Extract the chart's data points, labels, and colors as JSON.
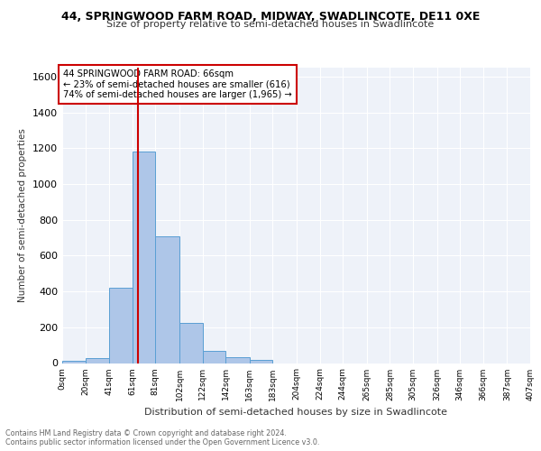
{
  "title1": "44, SPRINGWOOD FARM ROAD, MIDWAY, SWADLINCOTE, DE11 0XE",
  "title2": "Size of property relative to semi-detached houses in Swadlincote",
  "xlabel": "Distribution of semi-detached houses by size in Swadlincote",
  "ylabel": "Number of semi-detached properties",
  "footnote1": "Contains HM Land Registry data © Crown copyright and database right 2024.",
  "footnote2": "Contains public sector information licensed under the Open Government Licence v3.0.",
  "annotation_line1": "44 SPRINGWOOD FARM ROAD: 66sqm",
  "annotation_line2": "← 23% of semi-detached houses are smaller (616)",
  "annotation_line3": "74% of semi-detached houses are larger (1,965) →",
  "property_size": 66,
  "bar_edges": [
    0,
    20,
    41,
    61,
    81,
    102,
    122,
    142,
    163,
    183,
    204,
    224,
    244,
    265,
    285,
    305,
    326,
    346,
    366,
    387,
    407
  ],
  "bar_heights": [
    15,
    30,
    420,
    1180,
    710,
    225,
    70,
    35,
    20,
    0,
    0,
    0,
    0,
    0,
    0,
    0,
    0,
    0,
    0,
    0
  ],
  "bar_color": "#aec6e8",
  "bar_edge_color": "#5a9fd4",
  "vline_color": "#cc0000",
  "vline_x": 66,
  "ylim": [
    0,
    1650
  ],
  "yticks": [
    0,
    200,
    400,
    600,
    800,
    1000,
    1200,
    1400,
    1600
  ],
  "tick_labels": [
    "0sqm",
    "20sqm",
    "41sqm",
    "61sqm",
    "81sqm",
    "102sqm",
    "122sqm",
    "142sqm",
    "163sqm",
    "183sqm",
    "204sqm",
    "224sqm",
    "244sqm",
    "265sqm",
    "285sqm",
    "305sqm",
    "326sqm",
    "346sqm",
    "366sqm",
    "387sqm",
    "407sqm"
  ],
  "bg_color": "#eef2f9",
  "grid_color": "#ffffff",
  "annotation_box_color": "#ffffff",
  "annotation_box_edge": "#cc0000"
}
